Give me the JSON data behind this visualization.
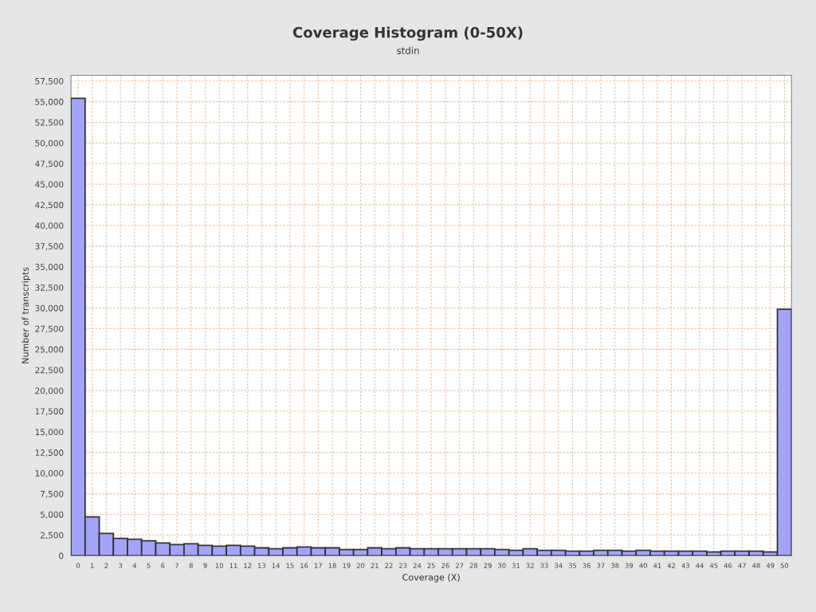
{
  "chart_data": {
    "type": "bar",
    "title": "Coverage Histogram (0-50X)",
    "subtitle": "stdin",
    "xlabel": "Coverage (X)",
    "ylabel": "Number of transcripts",
    "categories": [
      "0",
      "1",
      "2",
      "3",
      "4",
      "5",
      "6",
      "7",
      "8",
      "9",
      "10",
      "11",
      "12",
      "13",
      "14",
      "15",
      "16",
      "17",
      "18",
      "19",
      "20",
      "21",
      "22",
      "23",
      "24",
      "25",
      "26",
      "27",
      "28",
      "29",
      "30",
      "31",
      "32",
      "33",
      "34",
      "35",
      "36",
      "37",
      "38",
      "39",
      "40",
      "41",
      "42",
      "43",
      "44",
      "45",
      "46",
      "47",
      "48",
      "49",
      "50"
    ],
    "values": [
      55400,
      4700,
      2700,
      2100,
      2000,
      1800,
      1550,
      1350,
      1450,
      1250,
      1150,
      1250,
      1150,
      950,
      850,
      950,
      1050,
      950,
      950,
      750,
      750,
      950,
      850,
      950,
      850,
      850,
      850,
      850,
      850,
      850,
      750,
      650,
      850,
      650,
      650,
      550,
      550,
      650,
      650,
      550,
      650,
      550,
      550,
      550,
      550,
      450,
      550,
      550,
      550,
      450,
      29850
    ],
    "color": "#a3a3fa",
    "ylim": [
      0,
      58200
    ],
    "yticks": [
      {
        "value": 0,
        "label": "0"
      },
      {
        "value": 2500,
        "label": "2,500"
      },
      {
        "value": 5000,
        "label": "5,000"
      },
      {
        "value": 7500,
        "label": "7,500"
      },
      {
        "value": 10000,
        "label": "10,000"
      },
      {
        "value": 12500,
        "label": "12,500"
      },
      {
        "value": 15000,
        "label": "15,000"
      },
      {
        "value": 17500,
        "label": "17,500"
      },
      {
        "value": 20000,
        "label": "20,000"
      },
      {
        "value": 22500,
        "label": "22,500"
      },
      {
        "value": 25000,
        "label": "25,000"
      },
      {
        "value": 27500,
        "label": "27,500"
      },
      {
        "value": 30000,
        "label": "30,000"
      },
      {
        "value": 32500,
        "label": "32,500"
      },
      {
        "value": 35000,
        "label": "35,000"
      },
      {
        "value": 37500,
        "label": "37,500"
      },
      {
        "value": 40000,
        "label": "40,000"
      },
      {
        "value": 42500,
        "label": "42,500"
      },
      {
        "value": 45000,
        "label": "45,000"
      },
      {
        "value": 47500,
        "label": "47,500"
      },
      {
        "value": 50000,
        "label": "50,000"
      },
      {
        "value": 52500,
        "label": "52,500"
      },
      {
        "value": 55000,
        "label": "55,000"
      },
      {
        "value": 57500,
        "label": "57,500"
      }
    ],
    "grid": true
  }
}
